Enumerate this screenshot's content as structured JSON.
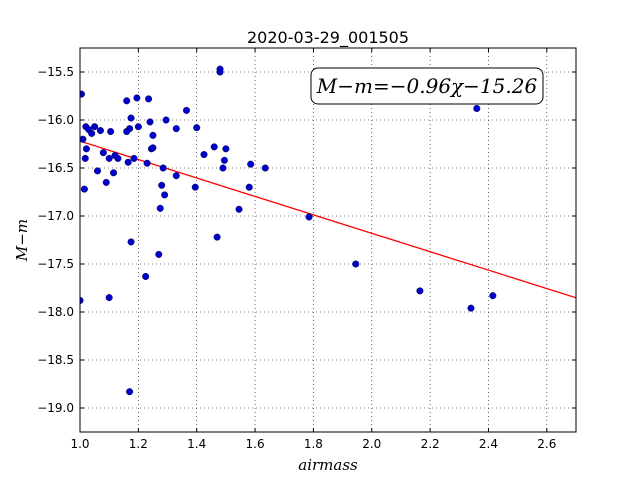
{
  "chart_data": {
    "type": "scatter",
    "title": "2020-03-29_001505",
    "xlabel": "airmass",
    "ylabel": "M−m",
    "xlim": [
      1.0,
      2.7
    ],
    "ylim": [
      -19.25,
      -15.25
    ],
    "x_ticks": [
      1.0,
      1.2,
      1.4,
      1.6,
      1.8,
      2.0,
      2.2,
      2.4,
      2.6
    ],
    "x_tick_labels": [
      "1.0",
      "1.2",
      "1.4",
      "1.6",
      "1.8",
      "2.0",
      "2.2",
      "2.4",
      "2.6"
    ],
    "y_ticks": [
      -15.5,
      -16.0,
      -16.5,
      -17.0,
      -17.5,
      -18.0,
      -18.5,
      -19.0
    ],
    "y_tick_labels": [
      "−15.5",
      "−16.0",
      "−16.5",
      "−17.0",
      "−17.5",
      "−18.0",
      "−18.5",
      "−19.0"
    ],
    "grid": true,
    "annotation": "M−m=−0.96χ−15.26",
    "fit": {
      "slope": -0.96,
      "intercept": -15.26,
      "color": "#ff0000"
    },
    "point_color": "#0000cc",
    "points": [
      {
        "x": 1.0,
        "y": -17.88
      },
      {
        "x": 1.005,
        "y": -15.73
      },
      {
        "x": 1.01,
        "y": -16.2
      },
      {
        "x": 1.015,
        "y": -16.72
      },
      {
        "x": 1.018,
        "y": -16.4
      },
      {
        "x": 1.02,
        "y": -16.07
      },
      {
        "x": 1.022,
        "y": -16.3
      },
      {
        "x": 1.03,
        "y": -16.1
      },
      {
        "x": 1.04,
        "y": -16.14
      },
      {
        "x": 1.05,
        "y": -16.07
      },
      {
        "x": 1.06,
        "y": -16.53
      },
      {
        "x": 1.07,
        "y": -16.11
      },
      {
        "x": 1.08,
        "y": -16.34
      },
      {
        "x": 1.09,
        "y": -16.65
      },
      {
        "x": 1.1,
        "y": -17.85
      },
      {
        "x": 1.1,
        "y": -16.4
      },
      {
        "x": 1.105,
        "y": -16.12
      },
      {
        "x": 1.115,
        "y": -16.55
      },
      {
        "x": 1.12,
        "y": -16.37
      },
      {
        "x": 1.13,
        "y": -16.4
      },
      {
        "x": 1.16,
        "y": -15.8
      },
      {
        "x": 1.16,
        "y": -16.12
      },
      {
        "x": 1.165,
        "y": -16.44
      },
      {
        "x": 1.17,
        "y": -16.09
      },
      {
        "x": 1.17,
        "y": -18.83
      },
      {
        "x": 1.175,
        "y": -17.27
      },
      {
        "x": 1.175,
        "y": -15.98
      },
      {
        "x": 1.185,
        "y": -16.4
      },
      {
        "x": 1.195,
        "y": -15.77
      },
      {
        "x": 1.2,
        "y": -16.07
      },
      {
        "x": 1.225,
        "y": -17.63
      },
      {
        "x": 1.23,
        "y": -16.45
      },
      {
        "x": 1.235,
        "y": -15.78
      },
      {
        "x": 1.24,
        "y": -16.02
      },
      {
        "x": 1.245,
        "y": -16.3
      },
      {
        "x": 1.25,
        "y": -16.29
      },
      {
        "x": 1.25,
        "y": -16.16
      },
      {
        "x": 1.27,
        "y": -17.4
      },
      {
        "x": 1.275,
        "y": -16.92
      },
      {
        "x": 1.28,
        "y": -16.68
      },
      {
        "x": 1.285,
        "y": -16.5
      },
      {
        "x": 1.29,
        "y": -16.78
      },
      {
        "x": 1.295,
        "y": -16.0
      },
      {
        "x": 1.33,
        "y": -16.09
      },
      {
        "x": 1.33,
        "y": -16.58
      },
      {
        "x": 1.365,
        "y": -15.9
      },
      {
        "x": 1.395,
        "y": -16.7
      },
      {
        "x": 1.4,
        "y": -16.08
      },
      {
        "x": 1.425,
        "y": -16.36
      },
      {
        "x": 1.46,
        "y": -16.28
      },
      {
        "x": 1.47,
        "y": -17.22
      },
      {
        "x": 1.48,
        "y": -15.47
      },
      {
        "x": 1.48,
        "y": -15.5
      },
      {
        "x": 1.49,
        "y": -16.5
      },
      {
        "x": 1.495,
        "y": -16.42
      },
      {
        "x": 1.5,
        "y": -16.3
      },
      {
        "x": 1.545,
        "y": -16.93
      },
      {
        "x": 1.58,
        "y": -16.7
      },
      {
        "x": 1.585,
        "y": -16.46
      },
      {
        "x": 1.635,
        "y": -16.5
      },
      {
        "x": 1.785,
        "y": -17.01
      },
      {
        "x": 1.945,
        "y": -17.5
      },
      {
        "x": 2.165,
        "y": -17.78
      },
      {
        "x": 2.34,
        "y": -17.96
      },
      {
        "x": 2.36,
        "y": -15.88
      },
      {
        "x": 2.415,
        "y": -17.83
      }
    ]
  }
}
